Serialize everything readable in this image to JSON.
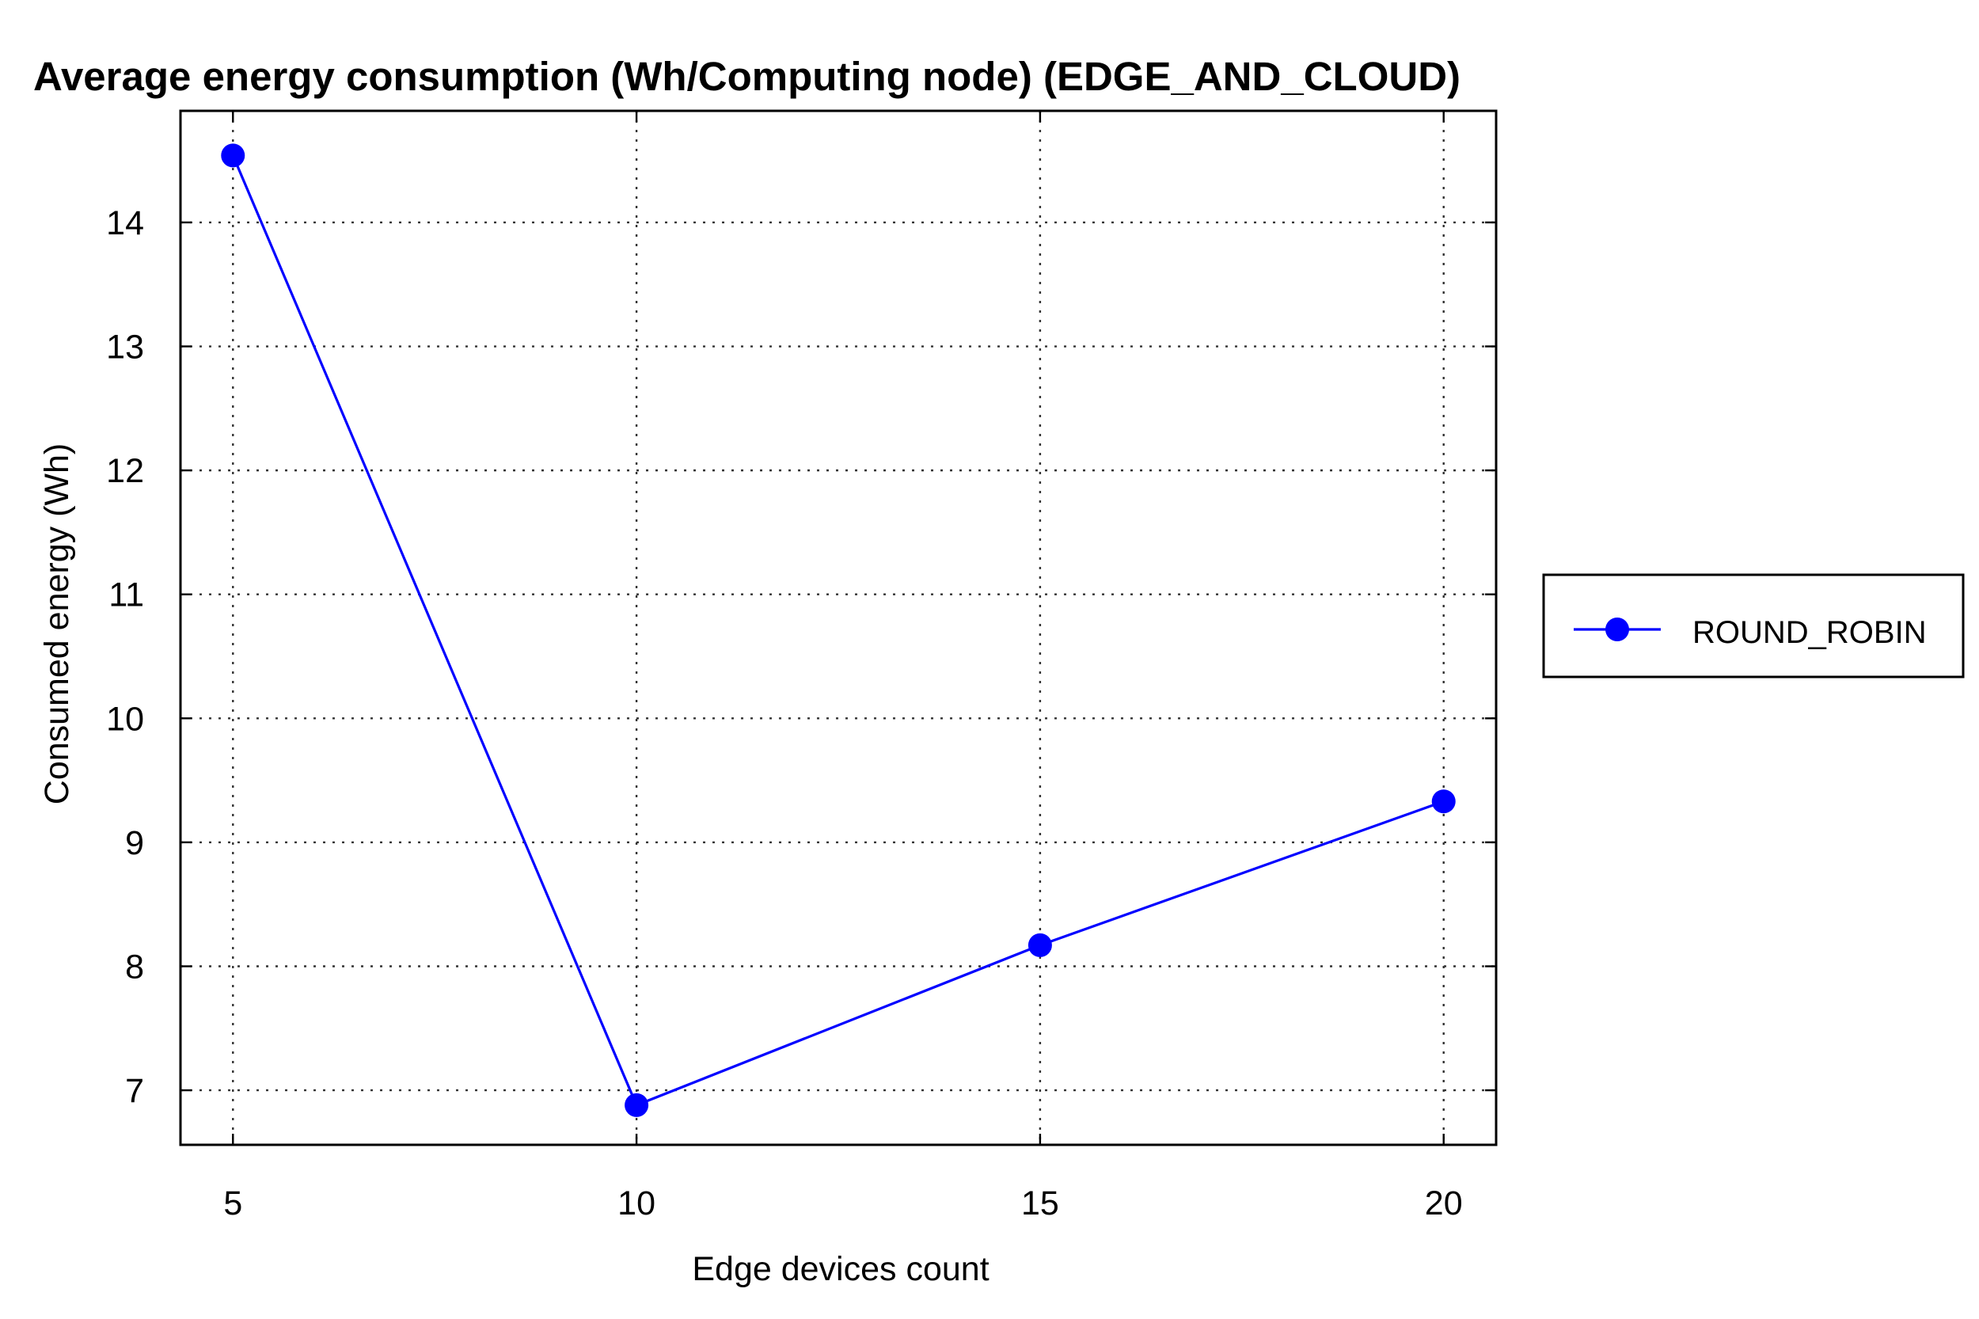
{
  "chart_data": {
    "type": "line",
    "title": "Average energy consumption (Wh/Computing node) (EDGE_AND_CLOUD)",
    "xlabel": "Edge devices count",
    "ylabel": "Consumed energy (Wh)",
    "x": [
      5,
      10,
      15,
      20
    ],
    "x_ticks": [
      5,
      10,
      15,
      20
    ],
    "y_ticks": [
      7,
      8,
      9,
      10,
      11,
      12,
      13,
      14
    ],
    "xlim": [
      4.35,
      20.65
    ],
    "ylim": [
      6.56,
      14.9
    ],
    "grid": true,
    "legend_position": "right",
    "series": [
      {
        "name": "ROUND_ROBIN",
        "color": "#0000ff",
        "marker": "circle",
        "values": [
          14.54,
          6.88,
          8.17,
          9.33
        ]
      }
    ]
  }
}
